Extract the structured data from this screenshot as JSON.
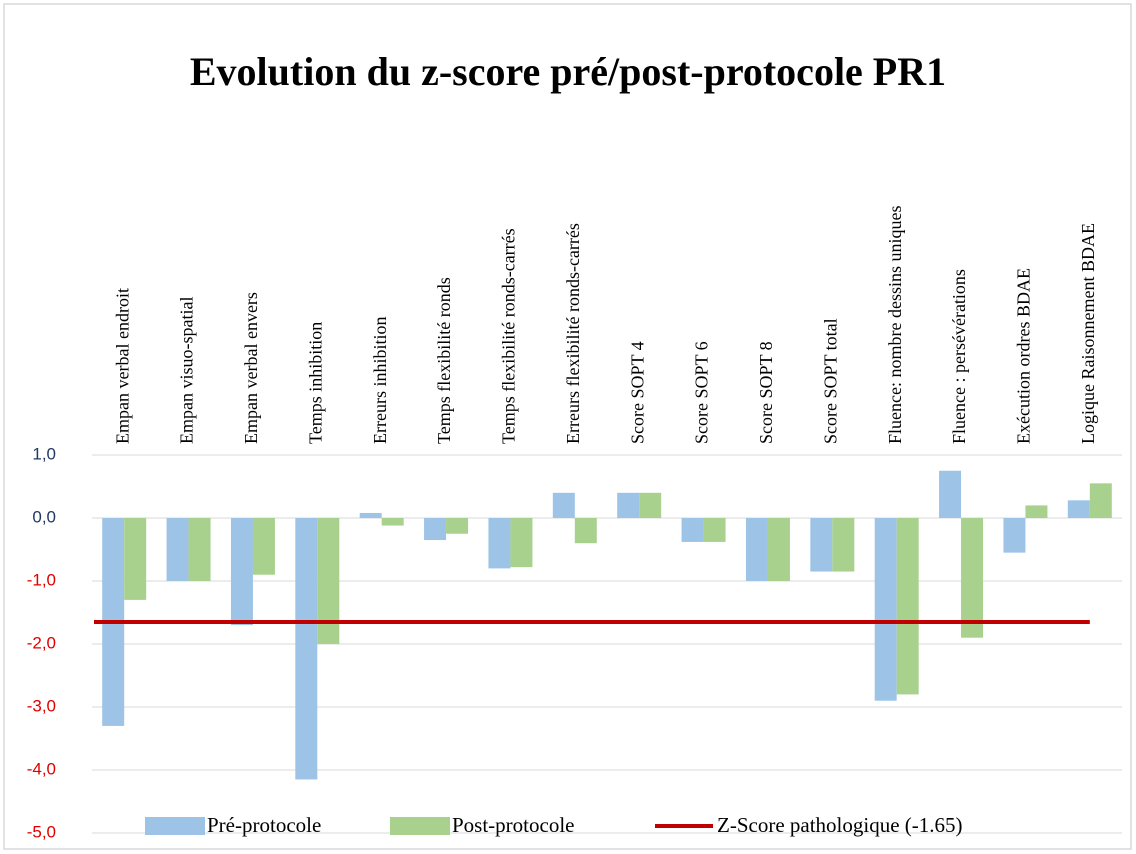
{
  "chart_data": {
    "type": "bar",
    "title": "Evolution du z-score pré/post-protocole PR1",
    "categories": [
      "Empan verbal endroit",
      "Empan visuo-spatial",
      "Empan verbal envers",
      "Temps inhibition",
      "Erreurs inhibition",
      "Temps flexibilité ronds",
      "Temps flexibilité ronds-carrés",
      "Erreurs flexibilité ronds-carrés",
      "Score SOPT 4",
      "Score SOPT 6",
      "Score SOPT 8",
      "Score SOPT total",
      "Fluence: nombre dessins uniques",
      "Fluence : persévérations",
      "Exécution ordres BDAE",
      "Logique Raisonnement BDAE"
    ],
    "series": [
      {
        "name": "Pré-protocole",
        "color": "#9dc3e6",
        "values": [
          -3.3,
          -1.0,
          -1.7,
          -4.15,
          0.08,
          -0.35,
          -0.8,
          0.4,
          0.4,
          -0.38,
          -1.0,
          -0.85,
          -2.9,
          0.75,
          -0.55,
          0.28
        ]
      },
      {
        "name": "Post-protocole",
        "color": "#a9d18e",
        "values": [
          -1.3,
          -1.0,
          -0.9,
          -2.0,
          -0.12,
          -0.25,
          -0.78,
          -0.4,
          0.4,
          -0.38,
          -1.0,
          -0.85,
          -2.8,
          -1.9,
          0.2,
          0.55
        ]
      }
    ],
    "reference_line": {
      "name": "Z-Score pathologique (-1.65)",
      "value": -1.65,
      "color": "#c00000"
    },
    "ylim": [
      -5,
      1
    ],
    "yticks": [
      {
        "value": 1,
        "label": "1,0"
      },
      {
        "value": 0,
        "label": "0,0"
      },
      {
        "value": -1,
        "label": "-1,0"
      },
      {
        "value": -2,
        "label": "-2,0"
      },
      {
        "value": -3,
        "label": "-3,0"
      },
      {
        "value": -4,
        "label": "-4,0"
      },
      {
        "value": -5,
        "label": "-5,0"
      }
    ],
    "ytick_color": "#203864",
    "negative_ytick_color": "#e00000",
    "grid": true,
    "legend": "bottom"
  }
}
